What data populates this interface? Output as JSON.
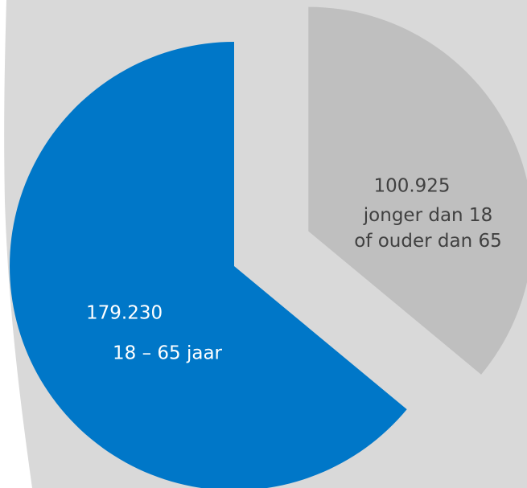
{
  "chart_data": {
    "type": "pie",
    "categories": [
      "18 – 65 jaar",
      "jonger dan 18\nof ouder dan 65"
    ],
    "values": [
      179230,
      100925
    ],
    "value_labels": [
      "179.230",
      "100.925"
    ],
    "colors": [
      "#0077c8",
      "#bfbfbf"
    ]
  }
}
